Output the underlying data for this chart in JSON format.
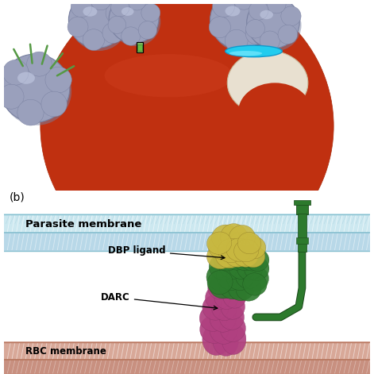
{
  "top_panel": {
    "bg_color": "#ffffff",
    "rbc_color": "#c03010",
    "rbc_edge_color": "#aa2808",
    "merozoite_color": "#9aa0bc",
    "merozoite_edge": "#7880a0",
    "cyan_band_color": "#22ccee",
    "green_ligand_color": "#559944",
    "entry_pocket_color": "#e8e0d0",
    "entry_edge_color": "#c8b898",
    "box_outline": "#000000",
    "box_fill": "#88cc66",
    "box_inner": "#66bb44"
  },
  "bottom_panel": {
    "bg_color": "#ffffff",
    "pm_upper_color": "#b8dde8",
    "pm_lower_color": "#c8e8f2",
    "rbc_upper_color": "#dda898",
    "rbc_lower_color": "#cc9080",
    "stalk_color": "#2d7a2d",
    "stalk_edge": "#1a4a1a",
    "dbp_green": "#2d7a2d",
    "dbp_yellow": "#c8b840",
    "darc_color": "#b04080",
    "label_b": "(b)",
    "label_parasite": "Parasite membrane",
    "label_dbp": "DBP ligand",
    "label_darc": "DARC",
    "label_rbc": "RBC membrane"
  },
  "fig_width": 4.71,
  "fig_height": 4.71,
  "dpi": 100
}
